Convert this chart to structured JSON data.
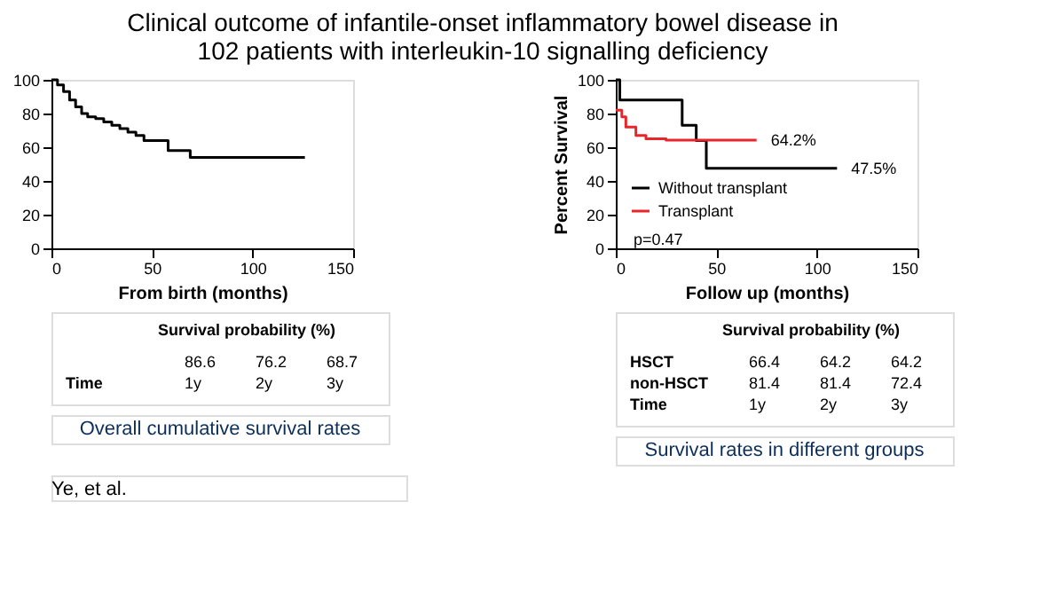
{
  "chart_data": [
    {
      "type": "step",
      "title": "Clinical outcome of infantile-onset inflammatory bowel disease in 102 patients with interleukin-10 signalling deficiency",
      "subtitle": "Overall cumulative survival rates",
      "xlabel": "From birth (months)",
      "x": [
        0,
        3,
        6,
        9,
        12,
        15,
        18,
        22,
        26,
        30,
        34,
        38,
        42,
        46,
        52,
        58,
        69,
        126
      ],
      "values": [
        100,
        97,
        93,
        88,
        84,
        80,
        78,
        77,
        75,
        73,
        71,
        69,
        67,
        64,
        64,
        58,
        54,
        54
      ],
      "color": "#000000",
      "xlim": [
        0,
        150
      ],
      "ylim": [
        0,
        100
      ],
      "xticks": [
        0,
        50,
        100,
        150
      ],
      "yticks": [
        0,
        20,
        40,
        60,
        80,
        100
      ],
      "grid": false,
      "annotations": [
        "Survival probability (%)",
        "86.6 76.2 68.7",
        "Time 1y 2y 3y",
        "Ye, et al."
      ]
    },
    {
      "type": "step",
      "subtitle": "Survival rates in different groups",
      "xlabel": "Follow up (months)",
      "ylabel": "Percent Survival",
      "xlim": [
        0,
        150
      ],
      "ylim": [
        0,
        100
      ],
      "xticks": [
        0,
        50,
        100,
        150
      ],
      "yticks": [
        0,
        20,
        40,
        60,
        80,
        100
      ],
      "grid": false,
      "legend": "bottom left",
      "series": [
        {
          "name": "Without transplant",
          "color": "#000000",
          "x": [
            0,
            2,
            33,
            40,
            45,
            110
          ],
          "values": [
            100,
            88,
            73,
            64,
            47.5,
            47.5
          ]
        },
        {
          "name": "Transplant",
          "color": "#e8262a",
          "x": [
            0,
            3,
            5,
            10,
            15,
            25,
            70
          ],
          "values": [
            82,
            78,
            72,
            67,
            65,
            64.2,
            64.2
          ]
        }
      ],
      "annotations": [
        {
          "text": "64.2%",
          "x": 70,
          "y": 64.2
        },
        {
          "text": "47.5%",
          "x": 110,
          "y": 47.5
        },
        "p=0.47",
        "Survival probability (%)",
        "HSCT 66.4 64.2 64.2",
        "non-HSCT 81.4 81.4 72.4",
        "Time 1y 2y 3y"
      ]
    }
  ]
}
